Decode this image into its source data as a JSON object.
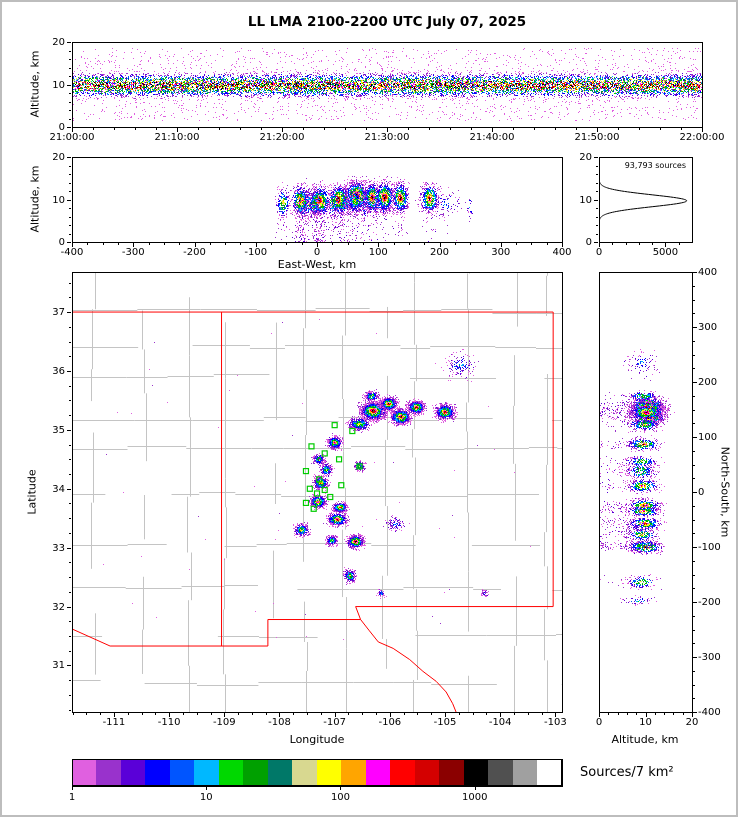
{
  "title": "LL LMA 2100-2200 UTC July 07, 2025",
  "colorbar": {
    "label": "Sources/7 km²",
    "tick_values": [
      1,
      10,
      100,
      1000
    ],
    "tick_labels": [
      "1",
      "10",
      "100",
      "1000"
    ],
    "log_span": 3.65,
    "max_value": 4467,
    "colors": [
      "#e060e0",
      "#9932cc",
      "#5a00d8",
      "#0000ff",
      "#0055ff",
      "#00b8ff",
      "#00d800",
      "#00a000",
      "#007868",
      "#d8d890",
      "#ffff00",
      "#ffa500",
      "#ff00ff",
      "#ff0000",
      "#d40000",
      "#8b0000",
      "#000000",
      "#505050",
      "#a0a0a0",
      "#ffffff"
    ]
  },
  "ui_colors": {
    "frame": "#bdbdbd",
    "background": "#ffffff"
  },
  "map_colors": {
    "state_border": "#ff0000",
    "county": "#c4c4c4",
    "station": "#00cc00"
  },
  "projection": {
    "ew_ref_lon": -107.0,
    "ns_ref_lat": 34.0,
    "km_per_deg_lon": 92,
    "km_per_deg_lat": 111
  },
  "chart_data": [
    {
      "id": "time_altitude",
      "type": "scatter",
      "ylabel": "Altitude, km",
      "xlim_seconds": [
        0,
        3600
      ],
      "ylim": [
        0,
        20
      ],
      "x_tick_values": [
        0,
        600,
        1200,
        1800,
        2400,
        3000,
        3600
      ],
      "x_tick_labels": [
        "21:00:00",
        "21:10:00",
        "21:20:00",
        "21:30:00",
        "21:40:00",
        "21:50:00",
        "22:00:00"
      ],
      "y_tick_values": [
        0,
        10,
        20
      ],
      "y_tick_labels": [
        "0",
        "10",
        "20"
      ],
      "band": {
        "alt_mean_km": 9.8,
        "alt_sd_km": 1.3,
        "outlier_fraction": 0.13,
        "n_points": 14000
      }
    },
    {
      "id": "eastwest_altitude",
      "type": "scatter",
      "xlabel": "East-West, km",
      "ylabel": "Altitude, km",
      "xlim": [
        -400,
        400
      ],
      "ylim": [
        0,
        20
      ],
      "x_tick_values": [
        -400,
        -300,
        -200,
        -100,
        0,
        100,
        200,
        300,
        400
      ],
      "x_tick_labels": [
        "-400",
        "-300",
        "-200",
        "-100",
        "0",
        "100",
        "200",
        "300",
        "400"
      ],
      "y_tick_values": [
        0,
        10,
        20
      ],
      "y_tick_labels": [
        "0",
        "10",
        "20"
      ]
    },
    {
      "id": "altitude_histogram",
      "type": "line",
      "annotation": "93,793 sources",
      "xlim": [
        0,
        7000
      ],
      "ylim": [
        0,
        20
      ],
      "x_tick_values": [
        0,
        5000
      ],
      "x_tick_labels": [
        "0",
        "5000"
      ],
      "y_tick_values": [
        0,
        10,
        20
      ],
      "y_tick_labels": [
        "0",
        "10",
        "20"
      ],
      "curve": {
        "peak_altitude_km": 9.7,
        "sd_km": 1.4,
        "peak_count": 6600
      }
    },
    {
      "id": "plan_view",
      "type": "scatter",
      "xlabel": "Longitude",
      "ylabel": "Latitude",
      "xlim": [
        -111.76,
        -102.88
      ],
      "ylim": [
        30.21,
        37.68
      ],
      "x_tick_values": [
        -111,
        -110,
        -109,
        -108,
        -107,
        -106,
        -105,
        -104,
        -103
      ],
      "x_tick_labels": [
        "-111",
        "-110",
        "-109",
        "-108",
        "-107",
        "-106",
        "-105",
        "-104",
        "-103"
      ],
      "y_tick_values": [
        31,
        32,
        33,
        34,
        35,
        36,
        37
      ],
      "y_tick_labels": [
        "31",
        "32",
        "33",
        "34",
        "35",
        "36",
        "37"
      ],
      "clusters": [
        {
          "lon": -106.3,
          "lat": 35.32,
          "sx": 0.1,
          "sy": 0.07,
          "n": 2400,
          "peak": 1.0,
          "alt": 10.8,
          "tail": 0.05
        },
        {
          "lon": -106.02,
          "lat": 35.44,
          "sx": 0.07,
          "sy": 0.05,
          "n": 1100,
          "peak": 0.9,
          "alt": 10.5,
          "tail": 0.05
        },
        {
          "lon": -105.8,
          "lat": 35.22,
          "sx": 0.08,
          "sy": 0.06,
          "n": 1300,
          "peak": 0.95,
          "alt": 10.6,
          "tail": 0.05
        },
        {
          "lon": -105.52,
          "lat": 35.38,
          "sx": 0.07,
          "sy": 0.05,
          "n": 1000,
          "peak": 0.9,
          "alt": 10.4,
          "tail": 0.05
        },
        {
          "lon": -105.0,
          "lat": 35.3,
          "sx": 0.08,
          "sy": 0.06,
          "n": 900,
          "peak": 0.85,
          "alt": 10.2,
          "tail": 0.05
        },
        {
          "lon": -106.55,
          "lat": 35.1,
          "sx": 0.1,
          "sy": 0.05,
          "n": 450,
          "peak": 0.6,
          "alt": 9.8,
          "tail": 0.05
        },
        {
          "lon": -106.33,
          "lat": 35.57,
          "sx": 0.06,
          "sy": 0.04,
          "n": 300,
          "peak": 0.55,
          "alt": 9.5,
          "tail": 0.05
        },
        {
          "lon": -104.72,
          "lat": 36.1,
          "sx": 0.14,
          "sy": 0.11,
          "n": 150,
          "peak": 0.25,
          "alt": 9.0,
          "tail": 0.02
        },
        {
          "lon": -107.0,
          "lat": 34.78,
          "sx": 0.06,
          "sy": 0.05,
          "n": 550,
          "peak": 0.8,
          "alt": 9.6,
          "tail": 0.1
        },
        {
          "lon": -107.28,
          "lat": 34.5,
          "sx": 0.05,
          "sy": 0.04,
          "n": 320,
          "peak": 0.6,
          "alt": 9.2,
          "tail": 0.1
        },
        {
          "lon": -107.15,
          "lat": 34.32,
          "sx": 0.05,
          "sy": 0.05,
          "n": 280,
          "peak": 0.55,
          "alt": 9.0,
          "tail": 0.1
        },
        {
          "lon": -107.25,
          "lat": 34.1,
          "sx": 0.06,
          "sy": 0.05,
          "n": 520,
          "peak": 0.8,
          "alt": 9.4,
          "tail": 0.15
        },
        {
          "lon": -106.55,
          "lat": 34.38,
          "sx": 0.05,
          "sy": 0.04,
          "n": 200,
          "peak": 0.5,
          "alt": 9.0,
          "tail": 0.1
        },
        {
          "lon": -107.3,
          "lat": 33.78,
          "sx": 0.07,
          "sy": 0.05,
          "n": 620,
          "peak": 0.85,
          "alt": 9.8,
          "tail": 0.15
        },
        {
          "lon": -106.9,
          "lat": 33.68,
          "sx": 0.06,
          "sy": 0.04,
          "n": 480,
          "peak": 0.8,
          "alt": 9.6,
          "tail": 0.15
        },
        {
          "lon": -107.6,
          "lat": 33.3,
          "sx": 0.06,
          "sy": 0.05,
          "n": 380,
          "peak": 0.65,
          "alt": 9.2,
          "tail": 0.15
        },
        {
          "lon": -106.95,
          "lat": 33.48,
          "sx": 0.08,
          "sy": 0.05,
          "n": 650,
          "peak": 0.9,
          "alt": 9.8,
          "tail": 0.15
        },
        {
          "lon": -106.62,
          "lat": 33.1,
          "sx": 0.07,
          "sy": 0.05,
          "n": 750,
          "peak": 0.95,
          "alt": 10.0,
          "tail": 0.15
        },
        {
          "lon": -107.05,
          "lat": 33.12,
          "sx": 0.05,
          "sy": 0.04,
          "n": 240,
          "peak": 0.5,
          "alt": 9.0,
          "tail": 0.1
        },
        {
          "lon": -105.9,
          "lat": 33.4,
          "sx": 0.09,
          "sy": 0.06,
          "n": 110,
          "peak": 0.25,
          "alt": 8.8,
          "tail": 0.05
        },
        {
          "lon": -106.72,
          "lat": 32.52,
          "sx": 0.05,
          "sy": 0.05,
          "n": 240,
          "peak": 0.6,
          "alt": 9.2,
          "tail": 0.1
        },
        {
          "lon": -106.15,
          "lat": 32.22,
          "sx": 0.03,
          "sy": 0.03,
          "n": 60,
          "peak": 0.35,
          "alt": 8.5,
          "tail": 0.02
        },
        {
          "lon": -104.28,
          "lat": 32.22,
          "sx": 0.03,
          "sy": 0.03,
          "n": 35,
          "peak": 0.3,
          "alt": 8.0,
          "tail": 0.02
        }
      ],
      "stations_lon_lat": [
        [
          -107.0,
          35.08
        ],
        [
          -106.68,
          34.98
        ],
        [
          -107.42,
          34.72
        ],
        [
          -107.18,
          34.6
        ],
        [
          -106.92,
          34.5
        ],
        [
          -107.52,
          34.3
        ],
        [
          -107.28,
          34.16
        ],
        [
          -106.55,
          34.38
        ],
        [
          -107.45,
          34.0
        ],
        [
          -107.32,
          33.92
        ],
        [
          -107.18,
          33.98
        ],
        [
          -107.52,
          33.76
        ],
        [
          -107.38,
          33.66
        ],
        [
          -107.08,
          33.86
        ],
        [
          -106.88,
          34.06
        ]
      ],
      "state_borders": [
        [
          [
            -111.76,
            37.0
          ],
          [
            -103.04,
            37.0
          ]
        ],
        [
          [
            -109.05,
            37.0
          ],
          [
            -109.05,
            31.33
          ]
        ],
        [
          [
            -111.76,
            31.62
          ],
          [
            -111.07,
            31.33
          ],
          [
            -108.21,
            31.33
          ],
          [
            -108.21,
            31.78
          ],
          [
            -106.53,
            31.78
          ]
        ],
        [
          [
            -103.04,
            37.0
          ],
          [
            -103.04,
            32.0
          ]
        ],
        [
          [
            -103.04,
            32.0
          ],
          [
            -106.62,
            32.0
          ],
          [
            -106.53,
            31.78
          ]
        ],
        [
          [
            -106.53,
            31.78
          ],
          [
            -106.38,
            31.6
          ],
          [
            -106.21,
            31.4
          ],
          [
            -105.94,
            31.29
          ],
          [
            -105.64,
            31.1
          ],
          [
            -105.4,
            30.9
          ],
          [
            -105.16,
            30.73
          ],
          [
            -104.98,
            30.55
          ],
          [
            -104.86,
            30.35
          ],
          [
            -104.8,
            30.21
          ]
        ]
      ]
    },
    {
      "id": "northsouth_altitude",
      "type": "scatter",
      "xlabel": "Altitude, km",
      "ylabel": "North-South, km",
      "xlim": [
        0,
        20
      ],
      "ylim": [
        -400,
        400
      ],
      "x_tick_values": [
        0,
        10,
        20
      ],
      "x_tick_labels": [
        "0",
        "10",
        "20"
      ],
      "y_tick_values": [
        400,
        300,
        200,
        100,
        0,
        -100,
        -200,
        -300,
        -400
      ],
      "y_tick_labels": [
        "400",
        "300",
        "200",
        "100",
        "0",
        "-100",
        "-200",
        "-300",
        "-400"
      ]
    }
  ]
}
